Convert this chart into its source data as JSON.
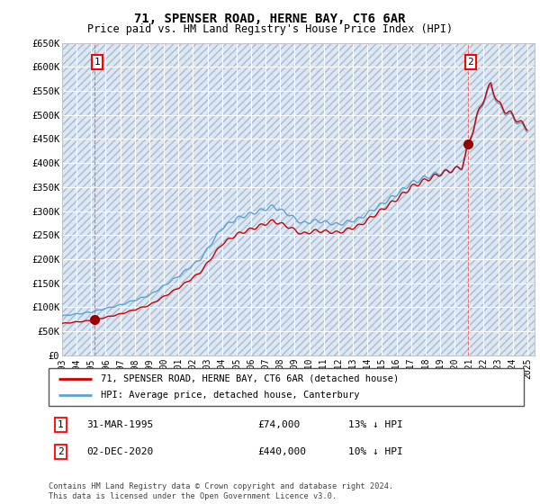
{
  "title": "71, SPENSER ROAD, HERNE BAY, CT6 6AR",
  "subtitle": "Price paid vs. HM Land Registry's House Price Index (HPI)",
  "ylim": [
    0,
    650000
  ],
  "yticks": [
    0,
    50000,
    100000,
    150000,
    200000,
    250000,
    300000,
    350000,
    400000,
    450000,
    500000,
    550000,
    600000,
    650000
  ],
  "ytick_labels": [
    "£0",
    "£50K",
    "£100K",
    "£150K",
    "£200K",
    "£250K",
    "£300K",
    "£350K",
    "£400K",
    "£450K",
    "£500K",
    "£550K",
    "£600K",
    "£650K"
  ],
  "sale1_year": 1995.25,
  "sale1_price": 74000,
  "sale2_year": 2020.917,
  "sale2_price": 440000,
  "legend_line1": "71, SPENSER ROAD, HERNE BAY, CT6 6AR (detached house)",
  "legend_line2": "HPI: Average price, detached house, Canterbury",
  "hpi_color": "#5ba3d0",
  "price_color": "#cc0000",
  "bg_color": "#dce9f5",
  "hatch_color": "#aab8cc",
  "grid_color": "#ffffff",
  "footer": "Contains HM Land Registry data © Crown copyright and database right 2024.\nThis data is licensed under the Open Government Licence v3.0."
}
